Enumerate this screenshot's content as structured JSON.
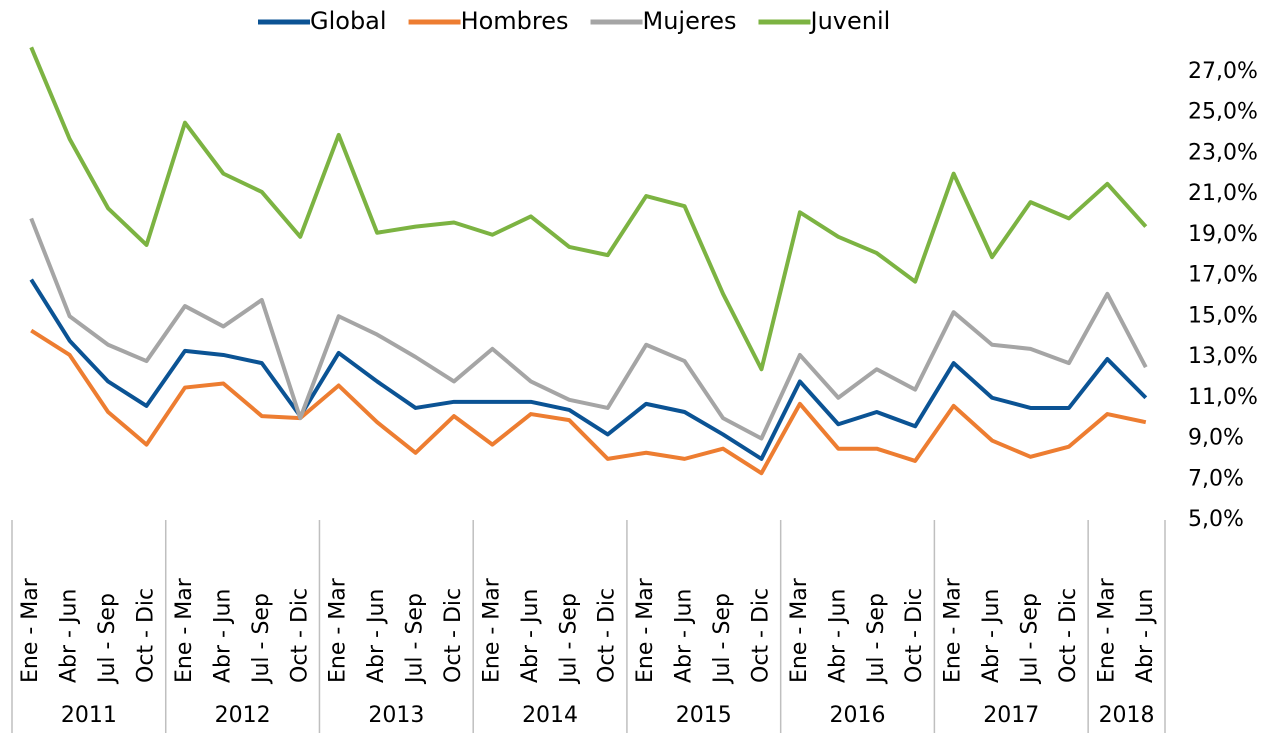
{
  "chart_data": {
    "type": "line",
    "categories": [
      "Ene - Mar",
      "Abr - Jun",
      "Jul - Sep",
      "Oct - Dic",
      "Ene - Mar",
      "Abr - Jun",
      "Jul - Sep",
      "Oct - Dic",
      "Ene - Mar",
      "Abr - Jun",
      "Jul - Sep",
      "Oct - Dic",
      "Ene - Mar",
      "Abr - Jun",
      "Jul - Sep",
      "Oct - Dic",
      "Ene - Mar",
      "Abr - Jun",
      "Jul - Sep",
      "Oct - Dic",
      "Ene - Mar",
      "Abr - Jun",
      "Jul - Sep",
      "Oct - Dic",
      "Ene - Mar",
      "Abr - Jun",
      "Jul - Sep",
      "Oct - Dic",
      "Ene - Mar",
      "Abr - Jun"
    ],
    "groups": [
      {
        "label": "2011",
        "span": 4
      },
      {
        "label": "2012",
        "span": 4
      },
      {
        "label": "2013",
        "span": 4
      },
      {
        "label": "2014",
        "span": 4
      },
      {
        "label": "2015",
        "span": 4
      },
      {
        "label": "2016",
        "span": 4
      },
      {
        "label": "2017",
        "span": 4
      },
      {
        "label": "2018",
        "span": 2
      }
    ],
    "series": [
      {
        "name": "Global",
        "color": "#0b5394",
        "values": [
          16.8,
          13.8,
          11.8,
          10.6,
          13.3,
          13.1,
          12.7,
          10.1,
          13.2,
          11.8,
          10.5,
          10.8,
          10.8,
          10.8,
          10.4,
          9.2,
          10.7,
          10.3,
          9.2,
          8.0,
          11.8,
          9.7,
          10.3,
          9.6,
          12.7,
          11.0,
          10.5,
          10.5,
          12.9,
          11.0
        ]
      },
      {
        "name": "Hombres",
        "color": "#ed7d31",
        "values": [
          14.3,
          13.1,
          10.3,
          8.7,
          11.5,
          11.7,
          10.1,
          10.0,
          11.6,
          9.8,
          8.3,
          10.1,
          8.7,
          10.2,
          9.9,
          8.0,
          8.3,
          8.0,
          8.5,
          7.3,
          10.7,
          8.5,
          8.5,
          7.9,
          10.6,
          8.9,
          8.1,
          8.6,
          10.2,
          9.8
        ]
      },
      {
        "name": "Mujeres",
        "color": "#a5a5a5",
        "values": [
          19.8,
          15.0,
          13.6,
          12.8,
          15.5,
          14.5,
          15.8,
          10.0,
          15.0,
          14.1,
          13.0,
          11.8,
          13.4,
          11.8,
          10.9,
          10.5,
          13.6,
          12.8,
          10.0,
          9.0,
          13.1,
          11.0,
          12.4,
          11.4,
          15.2,
          13.6,
          13.4,
          12.7,
          16.1,
          12.5
        ]
      },
      {
        "name": "Juvenil",
        "color": "#7cb342",
        "values": [
          28.2,
          23.7,
          20.3,
          18.5,
          24.5,
          22.0,
          21.1,
          18.9,
          23.9,
          19.1,
          19.4,
          19.6,
          19.0,
          19.9,
          18.4,
          18.0,
          20.9,
          20.4,
          16.1,
          12.4,
          20.1,
          18.9,
          18.1,
          16.7,
          22.0,
          17.9,
          20.6,
          19.8,
          21.5,
          19.4
        ]
      }
    ],
    "ylim": [
      5,
      29
    ],
    "yticks": [
      {
        "value": 5,
        "label": "5,0%"
      },
      {
        "value": 7,
        "label": "7,0%"
      },
      {
        "value": 9,
        "label": "9,0%"
      },
      {
        "value": 11,
        "label": "11,0%"
      },
      {
        "value": 13,
        "label": "13,0%"
      },
      {
        "value": 15,
        "label": "15,0%"
      },
      {
        "value": 17,
        "label": "17,0%"
      },
      {
        "value": 19,
        "label": "19,0%"
      },
      {
        "value": 21,
        "label": "21,0%"
      },
      {
        "value": 23,
        "label": "23,0%"
      },
      {
        "value": 25,
        "label": "25,0%"
      },
      {
        "value": 27,
        "label": "27,0%"
      }
    ],
    "grid": false,
    "legend": "top"
  }
}
